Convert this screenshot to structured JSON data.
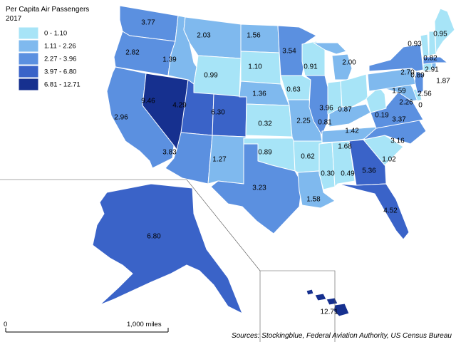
{
  "legend": {
    "title": "Per Capita Air Passengers",
    "subtitle": "2017",
    "classes": [
      {
        "label": "0 - 1.10",
        "color": "#a7e4f7"
      },
      {
        "label": "1.11 - 2.26",
        "color": "#7fb9ee"
      },
      {
        "label": "2.27 - 3.96",
        "color": "#5b90e0"
      },
      {
        "label": "3.97 - 6.80",
        "color": "#3a63c8"
      },
      {
        "label": "6.81 - 12.71",
        "color": "#16308f"
      }
    ]
  },
  "scale_bar": {
    "start": "0",
    "end": "1,000 miles"
  },
  "source": "Sources: Stockingblue, Federal Aviation Authority, US Census Bureau",
  "chart_data": {
    "type": "choropleth",
    "title": "Per Capita Air Passengers",
    "subtitle": "2017",
    "regions": [
      {
        "state": "WA",
        "value": 3.77,
        "label": "3.77",
        "class": 2
      },
      {
        "state": "OR",
        "value": 2.82,
        "label": "2.82",
        "class": 2
      },
      {
        "state": "CA",
        "value": 2.96,
        "label": "2.96",
        "class": 2
      },
      {
        "state": "NV",
        "value": 9.46,
        "label": "9.46",
        "class": 4
      },
      {
        "state": "ID",
        "value": 1.39,
        "label": "1.39",
        "class": 1
      },
      {
        "state": "MT",
        "value": 2.03,
        "label": "2.03",
        "class": 1
      },
      {
        "state": "WY",
        "value": 0.99,
        "label": "0.99",
        "class": 0
      },
      {
        "state": "UT",
        "value": 4.29,
        "label": "4.29",
        "class": 3
      },
      {
        "state": "CO",
        "value": 6.3,
        "label": "6.30",
        "class": 3
      },
      {
        "state": "AZ",
        "value": 3.83,
        "label": "3.83",
        "class": 2
      },
      {
        "state": "NM",
        "value": 1.27,
        "label": "1.27",
        "class": 1
      },
      {
        "state": "ND",
        "value": 1.56,
        "label": "1.56",
        "class": 1
      },
      {
        "state": "SD",
        "value": 1.1,
        "label": "1.10",
        "class": 0
      },
      {
        "state": "NE",
        "value": 1.36,
        "label": "1.36",
        "class": 1
      },
      {
        "state": "KS",
        "value": 0.32,
        "label": "0.32",
        "class": 0
      },
      {
        "state": "OK",
        "value": 0.89,
        "label": "0.89",
        "class": 0
      },
      {
        "state": "TX",
        "value": 3.23,
        "label": "3.23",
        "class": 2
      },
      {
        "state": "MN",
        "value": 3.54,
        "label": "3.54",
        "class": 2
      },
      {
        "state": "IA",
        "value": 0.63,
        "label": "0.63",
        "class": 0
      },
      {
        "state": "MO",
        "value": 2.25,
        "label": "2.25",
        "class": 1
      },
      {
        "state": "AR",
        "value": 0.62,
        "label": "0.62",
        "class": 0
      },
      {
        "state": "LA",
        "value": 1.58,
        "label": "1.58",
        "class": 1
      },
      {
        "state": "WI",
        "value": 0.91,
        "label": "0.91",
        "class": 0
      },
      {
        "state": "IL",
        "value": 3.96,
        "label": "3.96",
        "class": 2
      },
      {
        "state": "MI",
        "value": 2.0,
        "label": "2.00",
        "class": 1
      },
      {
        "state": "IN",
        "value": 0.81,
        "label": "0.81",
        "class": 0
      },
      {
        "state": "OH",
        "value": 0.87,
        "label": "0.87",
        "class": 0
      },
      {
        "state": "KY",
        "value": 1.42,
        "label": "1.42",
        "class": 1
      },
      {
        "state": "TN",
        "value": 1.68,
        "label": "1.68",
        "class": 1
      },
      {
        "state": "MS",
        "value": 0.3,
        "label": "0.30",
        "class": 0
      },
      {
        "state": "AL",
        "value": 0.49,
        "label": "0.49",
        "class": 0
      },
      {
        "state": "GA",
        "value": 5.36,
        "label": "5.36",
        "class": 3
      },
      {
        "state": "FL",
        "value": 4.52,
        "label": "4.52",
        "class": 3
      },
      {
        "state": "SC",
        "value": 1.02,
        "label": "1.02",
        "class": 0
      },
      {
        "state": "NC",
        "value": 3.16,
        "label": "3.16",
        "class": 2
      },
      {
        "state": "VA",
        "value": 3.37,
        "label": "3.37",
        "class": 2
      },
      {
        "state": "WV",
        "value": 0.19,
        "label": "0.19",
        "class": 0
      },
      {
        "state": "MD",
        "value": 2.26,
        "label": "2.26",
        "class": 1
      },
      {
        "state": "DE",
        "value": 0,
        "label": "0",
        "class": 0
      },
      {
        "state": "PA",
        "value": 1.59,
        "label": "1.59",
        "class": 1
      },
      {
        "state": "NJ",
        "value": 2.56,
        "label": "2.56",
        "class": 2
      },
      {
        "state": "NY",
        "value": 2.7,
        "label": "2.70",
        "class": 2
      },
      {
        "state": "CT",
        "value": 0.89,
        "label": "0.89",
        "class": 0
      },
      {
        "state": "RI",
        "value": 1.87,
        "label": "1.87",
        "class": 1
      },
      {
        "state": "MA",
        "value": 2.91,
        "label": "2.91",
        "class": 2
      },
      {
        "state": "VT",
        "value": 0.93,
        "label": "0.93",
        "class": 0
      },
      {
        "state": "NH",
        "value": 0.82,
        "label": "0.82",
        "class": 0
      },
      {
        "state": "ME",
        "value": 0.95,
        "label": "0.95",
        "class": 0
      },
      {
        "state": "AK",
        "value": 6.8,
        "label": "6.80",
        "class": 3
      },
      {
        "state": "HI",
        "value": 12.71,
        "label": "12.71",
        "class": 4
      }
    ]
  }
}
